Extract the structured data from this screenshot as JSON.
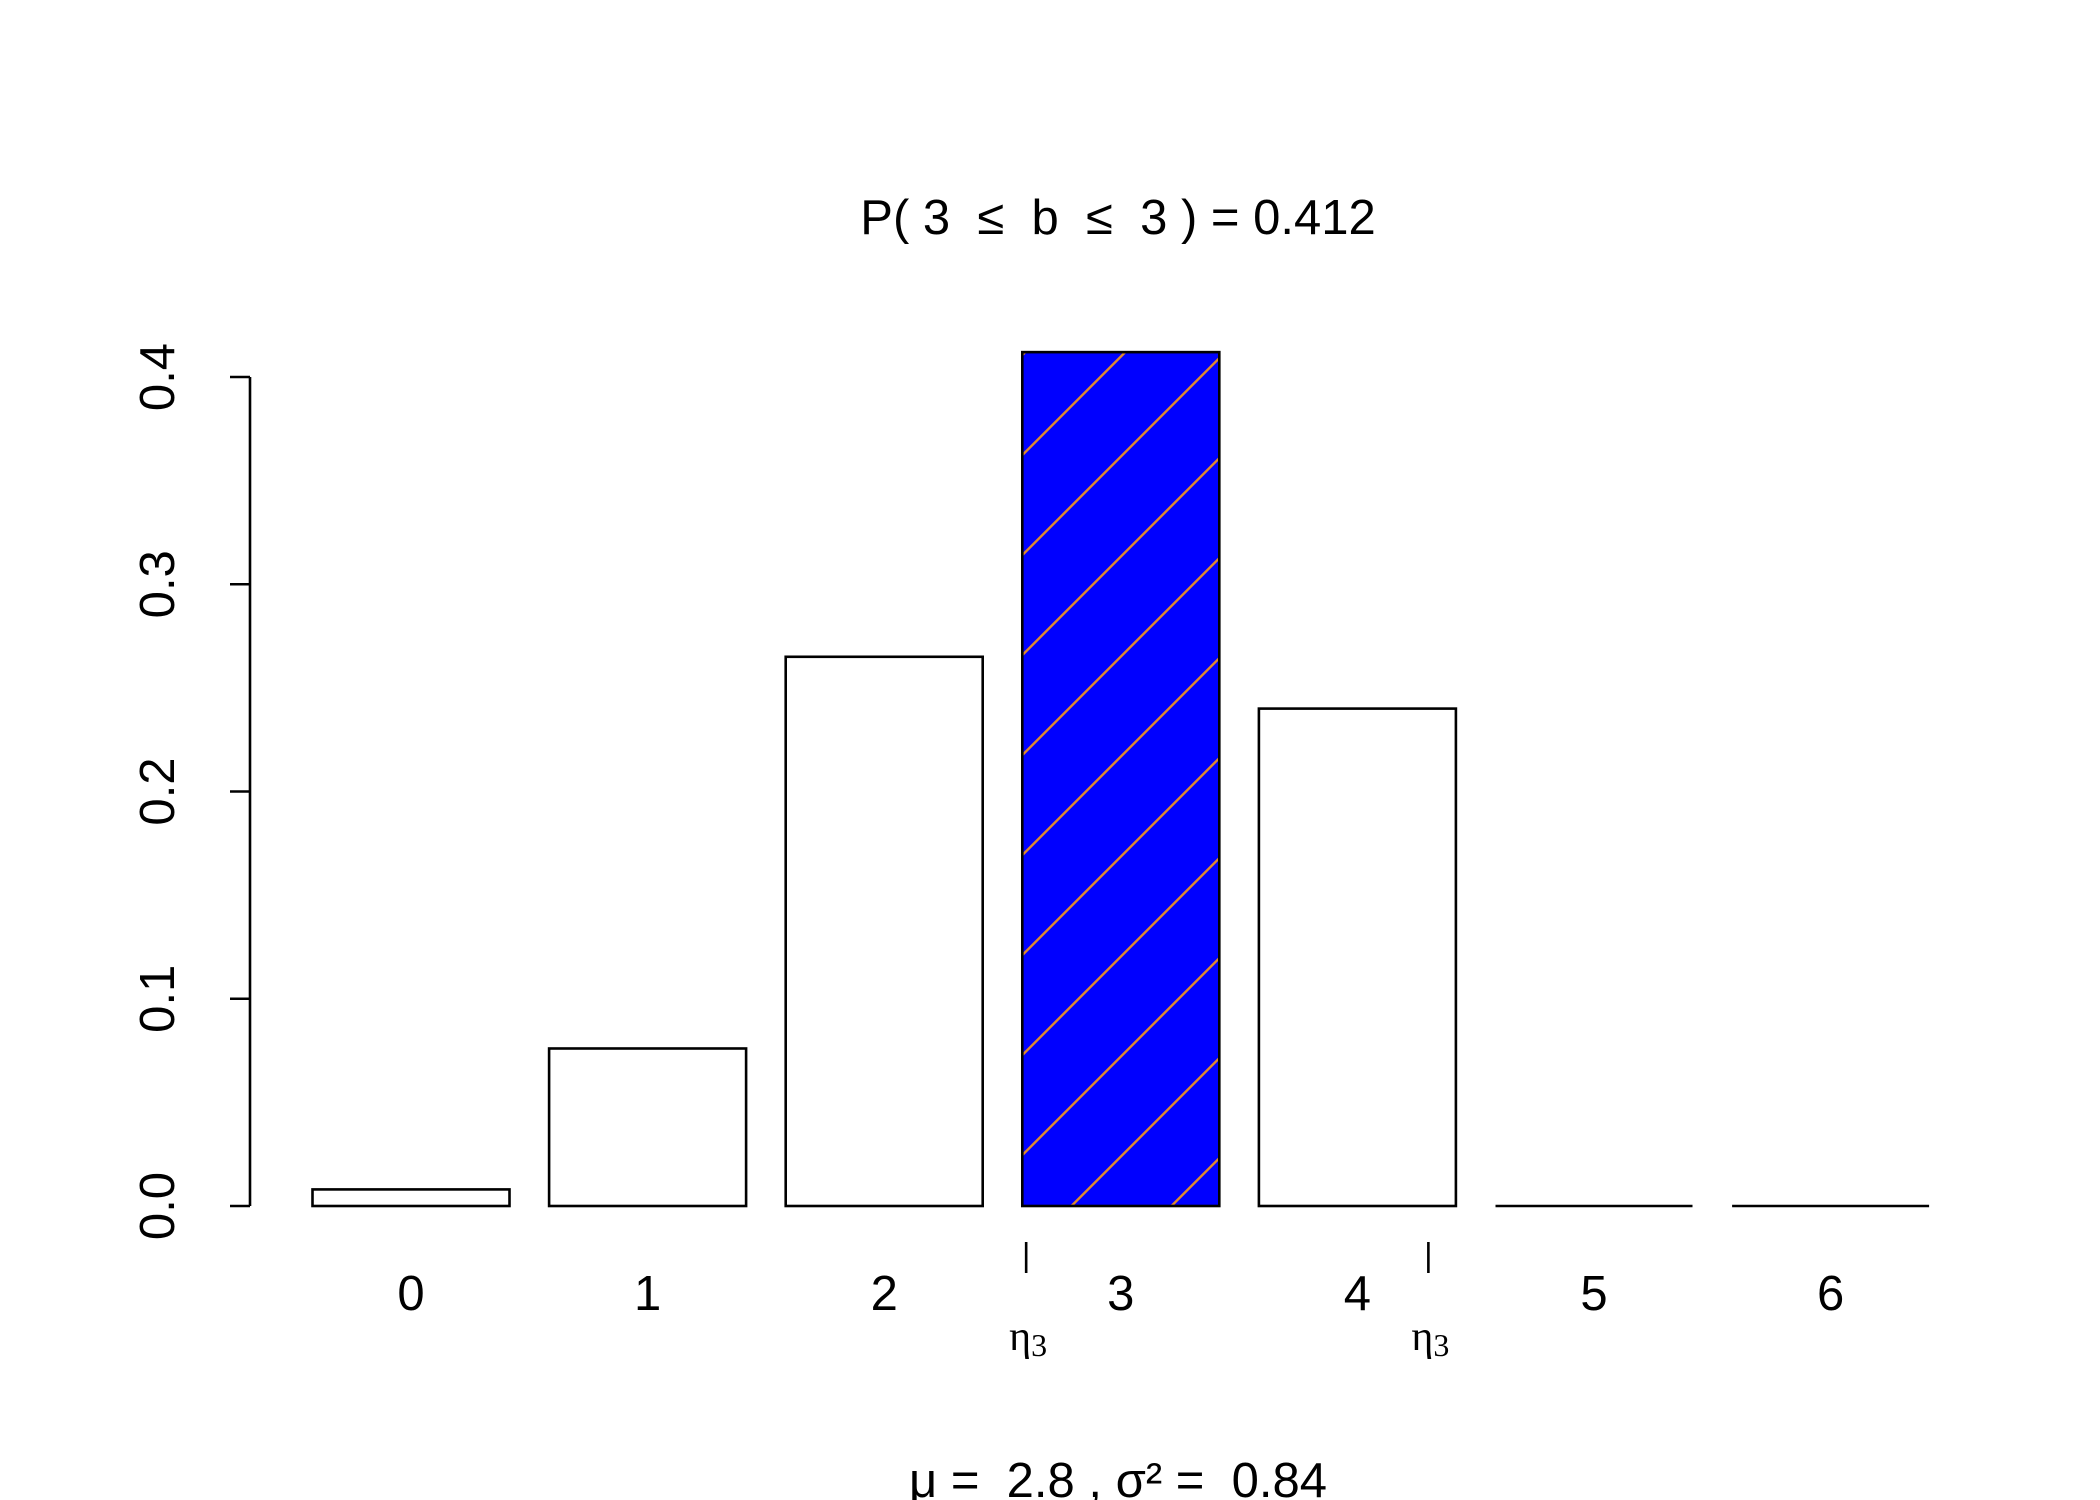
{
  "chart_data": {
    "type": "bar",
    "title": "P( 3  ≤  b  ≤  3 ) = 0.412",
    "subtitle": "μ =  2.8 , σ² =  0.84",
    "xlabel": "",
    "ylabel": "",
    "categories": [
      "0",
      "1",
      "2",
      "3",
      "4",
      "5",
      "6"
    ],
    "values": [
      0.008,
      0.076,
      0.265,
      0.412,
      0.24,
      0.0,
      0.0
    ],
    "highlight_index": 3,
    "ylim": [
      0,
      0.4
    ],
    "y_ticks": [
      0.0,
      0.1,
      0.2,
      0.3,
      0.4
    ],
    "y_tick_labels": [
      "0.0",
      "0.1",
      "0.2",
      "0.3",
      "0.4"
    ],
    "markers": [
      {
        "x": 2.6,
        "label": "η",
        "subscript": "3"
      },
      {
        "x": 4.3,
        "label": "η",
        "subscript": "3"
      }
    ],
    "grid": false,
    "colors": {
      "bar_fill": "#ffffff",
      "bar_stroke": "#000000",
      "highlight_fill": "#0000ff",
      "hatch": "#e08a2e"
    }
  }
}
